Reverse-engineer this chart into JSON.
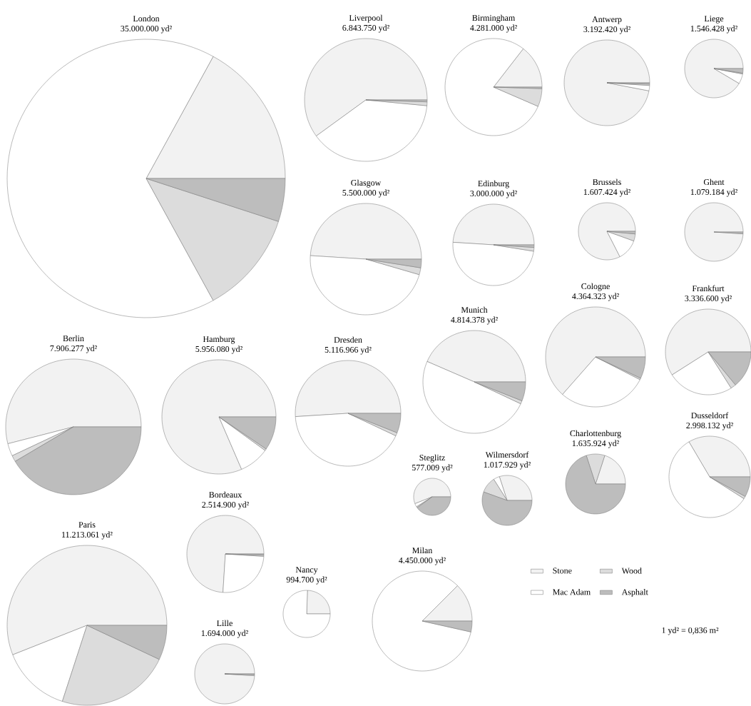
{
  "chart_data": [
    {
      "type": "pie",
      "title": "London",
      "subtitle": "35.000.000 yd²",
      "values": [
        17,
        66,
        12,
        5
      ],
      "colors": [
        "#f2f2f2",
        "#ffffff",
        "#dcdcdc",
        "#bdbdbd"
      ]
    },
    {
      "type": "pie",
      "title": "Liverpool",
      "subtitle": "6.843.750 yd²",
      "values": [
        60,
        38.5,
        1,
        0.5
      ],
      "colors": [
        "#f2f2f2",
        "#ffffff",
        "#dcdcdc",
        "#bdbdbd"
      ]
    },
    {
      "type": "pie",
      "title": "Birmingham",
      "subtitle": "4.281.000 yd²",
      "values": [
        14.5,
        79,
        6,
        0.5
      ],
      "colors": [
        "#f2f2f2",
        "#ffffff",
        "#dcdcdc",
        "#bdbdbd"
      ]
    },
    {
      "type": "pie",
      "title": "Antwerp",
      "subtitle": "3.192.420 yd²",
      "values": [
        97,
        2,
        0.5,
        0.5
      ],
      "colors": [
        "#f2f2f2",
        "#ffffff",
        "#dcdcdc",
        "#bdbdbd"
      ]
    },
    {
      "type": "pie",
      "title": "Liege",
      "subtitle": "1.546.428 yd²",
      "values": [
        91.5,
        5.5,
        0.5,
        2.5
      ],
      "colors": [
        "#f2f2f2",
        "#ffffff",
        "#dcdcdc",
        "#bdbdbd"
      ]
    },
    {
      "type": "pie",
      "title": "Glasgow",
      "subtitle": "5.500.000 yd²",
      "values": [
        49,
        46.5,
        2,
        2.5
      ],
      "colors": [
        "#f2f2f2",
        "#ffffff",
        "#dcdcdc",
        "#bdbdbd"
      ]
    },
    {
      "type": "pie",
      "title": "Edinburg",
      "subtitle": "3.000.000 yd²",
      "values": [
        49,
        48.5,
        1.5,
        1
      ],
      "colors": [
        "#f2f2f2",
        "#ffffff",
        "#dcdcdc",
        "#bdbdbd"
      ]
    },
    {
      "type": "pie",
      "title": "Brussels",
      "subtitle": "1.607.424 yd²",
      "values": [
        82.5,
        12,
        4,
        1.5
      ],
      "colors": [
        "#f2f2f2",
        "#ffffff",
        "#dcdcdc",
        "#bdbdbd"
      ]
    },
    {
      "type": "pie",
      "title": "Ghent",
      "subtitle": "1.079.184 yd²",
      "values": [
        99,
        0,
        0,
        1
      ],
      "colors": [
        "#f2f2f2",
        "#ffffff",
        "#dcdcdc",
        "#bdbdbd"
      ]
    },
    {
      "type": "pie",
      "title": "Berlin",
      "subtitle": "7.906.277 yd²",
      "values": [
        54,
        3,
        1.5,
        41.5
      ],
      "colors": [
        "#f2f2f2",
        "#ffffff",
        "#dcdcdc",
        "#bdbdbd"
      ]
    },
    {
      "type": "pie",
      "title": "Hamburg",
      "subtitle": "5.956.080 yd²",
      "values": [
        81.5,
        8.5,
        0.5,
        9.5
      ],
      "colors": [
        "#f2f2f2",
        "#ffffff",
        "#dcdcdc",
        "#bdbdbd"
      ]
    },
    {
      "type": "pie",
      "title": "Dresden",
      "subtitle": "5.116.966 yd²",
      "values": [
        51,
        42,
        1,
        6
      ],
      "colors": [
        "#f2f2f2",
        "#ffffff",
        "#dcdcdc",
        "#bdbdbd"
      ]
    },
    {
      "type": "pie",
      "title": "Munich",
      "subtitle": "4.814.378 yd²",
      "values": [
        43.5,
        49.5,
        1,
        6
      ],
      "colors": [
        "#f2f2f2",
        "#ffffff",
        "#dcdcdc",
        "#bdbdbd"
      ]
    },
    {
      "type": "pie",
      "title": "Cologne",
      "subtitle": "4.364.323 yd²",
      "values": [
        63.5,
        29,
        0.5,
        7
      ],
      "colors": [
        "#f2f2f2",
        "#ffffff",
        "#dcdcdc",
        "#bdbdbd"
      ]
    },
    {
      "type": "pie",
      "title": "Frankfurt",
      "subtitle": "3.336.600 yd²",
      "values": [
        59,
        25,
        2,
        14
      ],
      "colors": [
        "#f2f2f2",
        "#ffffff",
        "#dcdcdc",
        "#bdbdbd"
      ]
    },
    {
      "type": "pie",
      "title": "Steglitz",
      "subtitle": "577.009 yd²",
      "values": [
        56,
        3,
        1,
        40
      ],
      "colors": [
        "#f2f2f2",
        "#ffffff",
        "#dcdcdc",
        "#bdbdbd"
      ]
    },
    {
      "type": "pie",
      "title": "Wilmersdorf",
      "subtitle": "1.017.929 yd²",
      "values": [
        30,
        4,
        10.5,
        55.5
      ],
      "colors": [
        "#f2f2f2",
        "#ffffff",
        "#dcdcdc",
        "#bdbdbd"
      ]
    },
    {
      "type": "pie",
      "title": "Charlottenburg",
      "subtitle": "1.635.924 yd²",
      "values": [
        20,
        0,
        10,
        70
      ],
      "colors": [
        "#f2f2f2",
        "#ffffff",
        "#dcdcdc",
        "#bdbdbd"
      ]
    },
    {
      "type": "pie",
      "title": "Dusseldorf",
      "subtitle": "2.998.132 yd²",
      "values": [
        33.5,
        57.5,
        1,
        8
      ],
      "colors": [
        "#f2f2f2",
        "#ffffff",
        "#dcdcdc",
        "#bdbdbd"
      ]
    },
    {
      "type": "pie",
      "title": "Paris",
      "subtitle": "11.213.061 yd²",
      "values": [
        56,
        14,
        23,
        7
      ],
      "colors": [
        "#f2f2f2",
        "#ffffff",
        "#dcdcdc",
        "#bdbdbd"
      ]
    },
    {
      "type": "pie",
      "title": "Bordeaux",
      "subtitle": "2.514.900 yd²",
      "values": [
        74,
        25,
        0.5,
        0.5
      ],
      "colors": [
        "#f2f2f2",
        "#ffffff",
        "#dcdcdc",
        "#bdbdbd"
      ]
    },
    {
      "type": "pie",
      "title": "Lille",
      "subtitle": "1.694.000 yd²",
      "values": [
        99,
        0.5,
        0,
        0.5
      ],
      "colors": [
        "#f2f2f2",
        "#ffffff",
        "#dcdcdc",
        "#bdbdbd"
      ]
    },
    {
      "type": "pie",
      "title": "Nancy",
      "subtitle": "994.700 yd²",
      "values": [
        24.5,
        75.5,
        0,
        0
      ],
      "colors": [
        "#f2f2f2",
        "#ffffff",
        "#dcdcdc",
        "#bdbdbd"
      ]
    },
    {
      "type": "pie",
      "title": "Milan",
      "subtitle": "4.450.000 yd²",
      "categories": [
        "Stone",
        "Mac Adam",
        "Wood",
        "Asphalt"
      ],
      "values": [
        12.5,
        84,
        0,
        3.5
      ],
      "colors": [
        "#f2f2f2",
        "#ffffff",
        "#dcdcdc",
        "#bdbdbd"
      ],
      "legend": "right",
      "annotations": [
        "1 yd² = 0,836 m²"
      ]
    }
  ]
}
